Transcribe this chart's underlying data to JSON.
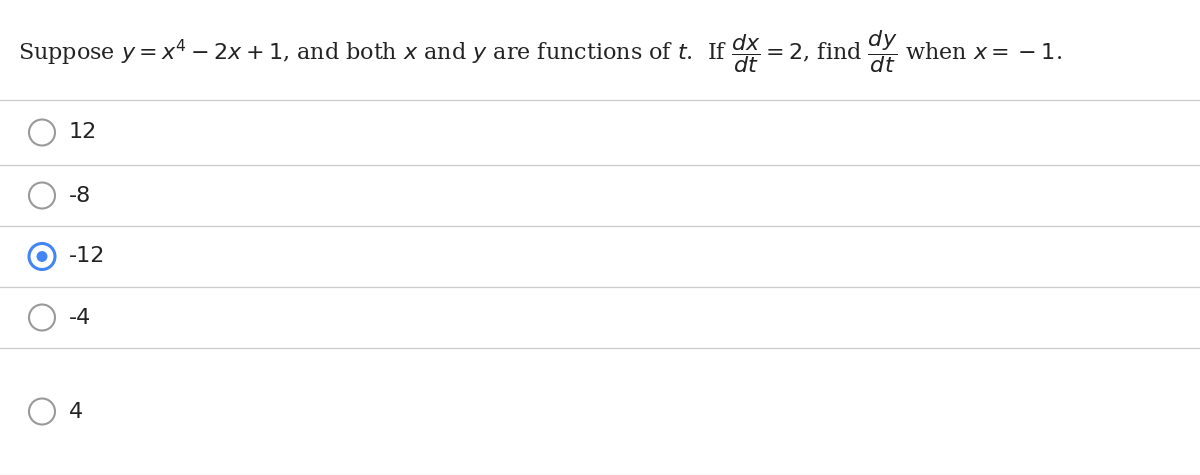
{
  "question_latex": "Suppose $y = x^4 - 2x + 1$, and both $x$ and $y$ are functions of $t$.  If $\\dfrac{dx}{dt} = 2$, find $\\dfrac{dy}{dt}$ when $x = -1$.",
  "options": [
    "12",
    "-8",
    "-12",
    "-4",
    "4"
  ],
  "selected_index": 2,
  "bg_color": "#ffffff",
  "text_color": "#222222",
  "option_text_color": "#222222",
  "circle_selected_outer": "#4285f4",
  "circle_selected_inner_dot": "#4285f4",
  "circle_unselected_edge": "#999999",
  "divider_color": "#cccccc",
  "question_fontsize": 16,
  "option_fontsize": 16,
  "fig_width": 12.0,
  "fig_height": 4.75,
  "dpi": 100
}
